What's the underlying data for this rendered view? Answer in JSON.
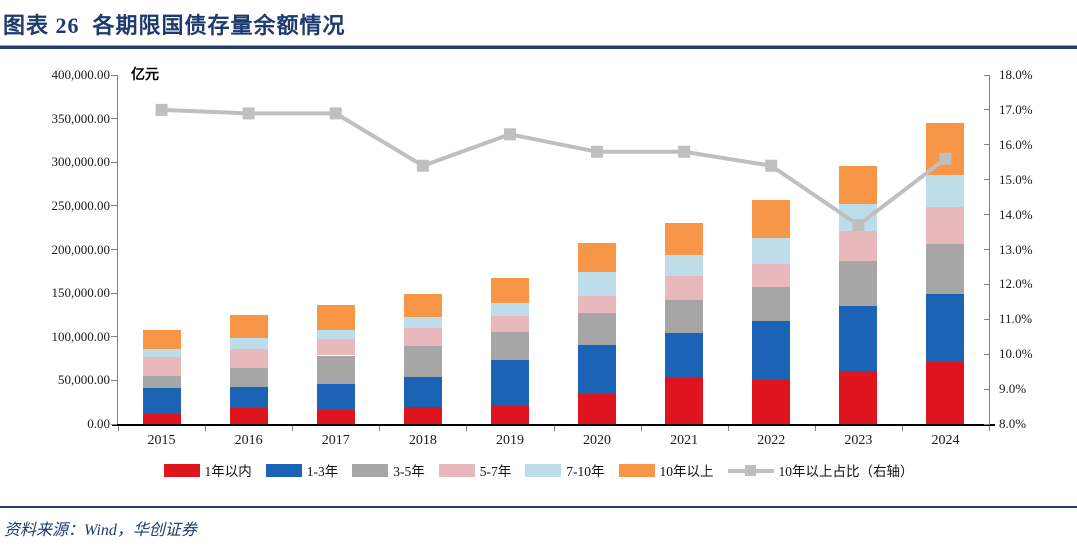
{
  "figure": {
    "title": "图表 26  各期限国债存量余额情况",
    "unit_label": "亿元",
    "source": "资料来源：Wind，华创证券"
  },
  "colors": {
    "title_navy": "#1e3a6e",
    "rule_navy": "#24406f",
    "axis_line": "#808080",
    "baseline": "#000000",
    "text": "#1a1a1a"
  },
  "chart_data": {
    "type": "bar",
    "subtype": "stacked-bars-with-line-overlay",
    "title": "各期限国债存量余额情况",
    "unit": "亿元",
    "grid": false,
    "legend_position": "bottom",
    "categories": [
      "2015",
      "2016",
      "2017",
      "2018",
      "2019",
      "2020",
      "2021",
      "2022",
      "2023",
      "2024"
    ],
    "series": [
      {
        "name": "1年以内",
        "type": "bar",
        "color": "#e0141c",
        "values": [
          11000,
          18500,
          15500,
          20000,
          22000,
          34500,
          52500,
          50500,
          61000,
          70500
        ]
      },
      {
        "name": "1-3年",
        "type": "bar",
        "color": "#1b63b5",
        "values": [
          30500,
          24000,
          30500,
          33500,
          51000,
          56500,
          51500,
          67000,
          74500,
          79000
        ]
      },
      {
        "name": "3-5年",
        "type": "bar",
        "color": "#a6a6a6",
        "values": [
          13000,
          22000,
          32500,
          35500,
          32500,
          36500,
          38500,
          40000,
          51500,
          57000
        ]
      },
      {
        "name": "5-7年",
        "type": "bar",
        "color": "#e8b8bc",
        "values": [
          22000,
          22000,
          19000,
          20500,
          18000,
          19000,
          27000,
          25500,
          34500,
          42000
        ]
      },
      {
        "name": "7-10年",
        "type": "bar",
        "color": "#bdddea",
        "values": [
          9500,
          11500,
          10500,
          13000,
          15500,
          28000,
          24000,
          30000,
          30500,
          36500
        ]
      },
      {
        "name": "10年以上",
        "type": "bar",
        "color": "#f79646",
        "values": [
          21500,
          26500,
          28000,
          27000,
          28500,
          33500,
          36500,
          44000,
          44000,
          59500
        ]
      },
      {
        "name": "10年以上占比（右轴）",
        "type": "line",
        "axis": "right",
        "color": "#bfbfbf",
        "values": [
          17.0,
          16.9,
          16.9,
          15.4,
          16.3,
          15.8,
          15.8,
          15.4,
          13.7,
          15.6
        ]
      }
    ],
    "left_axis": {
      "min": 0,
      "max": 400000,
      "step": 50000,
      "tick_labels": [
        "0.00",
        "50,000.00",
        "100,000.00",
        "150,000.00",
        "200,000.00",
        "250,000.00",
        "300,000.00",
        "350,000.00",
        "400,000.00"
      ]
    },
    "right_axis": {
      "min": 8,
      "max": 18,
      "step": 1,
      "tick_labels": [
        "8.0%",
        "9.0%",
        "10.0%",
        "11.0%",
        "12.0%",
        "13.0%",
        "14.0%",
        "15.0%",
        "16.0%",
        "17.0%",
        "18.0%"
      ]
    }
  }
}
